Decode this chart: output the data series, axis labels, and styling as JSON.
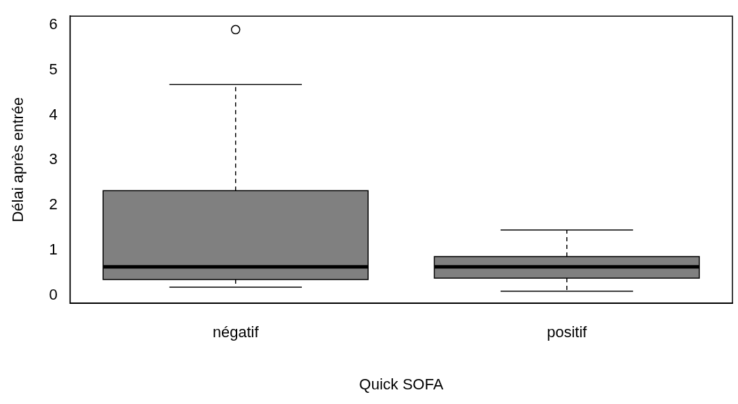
{
  "chart_data": {
    "type": "box",
    "xlabel": "Quick SOFA",
    "ylabel": "Délai après entrée",
    "categories": [
      "négatif",
      "positif"
    ],
    "color": "#808080",
    "boxes": [
      {
        "low": 0.18,
        "q1": 0.35,
        "median": 0.63,
        "q3": 2.32,
        "high": 4.68,
        "outliers": [
          5.9
        ]
      },
      {
        "low": 0.09,
        "q1": 0.38,
        "median": 0.63,
        "q3": 0.86,
        "high": 1.45
      }
    ],
    "ylim": [
      -0.18,
      6.2
    ],
    "yticks": [
      0,
      1,
      2,
      3,
      4,
      5,
      6
    ],
    "grid": false,
    "legend": false
  }
}
